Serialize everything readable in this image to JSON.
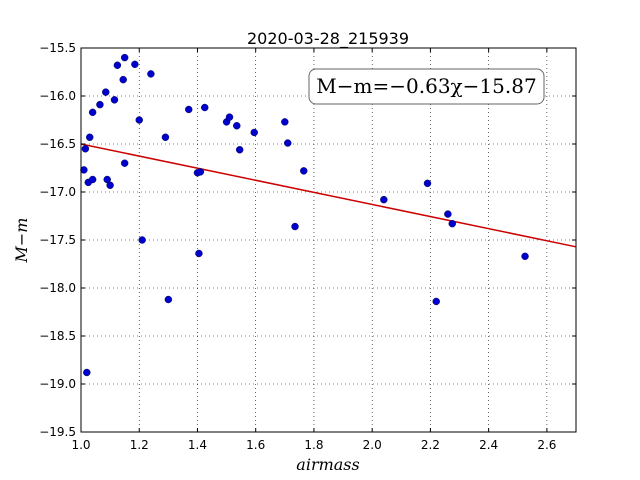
{
  "chart_data": {
    "type": "scatter",
    "title": "2020-03-28_215939",
    "xlabel": "airmass",
    "ylabel": "M−m",
    "xlim": [
      1.0,
      2.7
    ],
    "ylim": [
      -19.5,
      -15.5
    ],
    "x_ticks": [
      "1.0",
      "1.2",
      "1.4",
      "1.6",
      "1.8",
      "2.0",
      "2.2",
      "2.4",
      "2.6"
    ],
    "y_ticks": [
      "−15.5",
      "−16.0",
      "−16.5",
      "−17.0",
      "−17.5",
      "−18.0",
      "−18.5",
      "−19.0",
      "−19.5"
    ],
    "grid": true,
    "annotation": "M−m=−0.63χ−15.87",
    "fit": {
      "slope": -0.63,
      "intercept": -15.87,
      "color": "#cc0000"
    },
    "point_color": "#0000cc",
    "points": [
      [
        1.01,
        -16.77
      ],
      [
        1.015,
        -16.55
      ],
      [
        1.02,
        -18.88
      ],
      [
        1.025,
        -16.9
      ],
      [
        1.03,
        -16.43
      ],
      [
        1.04,
        -16.87
      ],
      [
        1.04,
        -16.17
      ],
      [
        1.065,
        -16.09
      ],
      [
        1.085,
        -15.96
      ],
      [
        1.09,
        -16.87
      ],
      [
        1.1,
        -16.93
      ],
      [
        1.115,
        -16.04
      ],
      [
        1.125,
        -15.68
      ],
      [
        1.145,
        -15.83
      ],
      [
        1.15,
        -15.6
      ],
      [
        1.15,
        -16.7
      ],
      [
        1.185,
        -15.67
      ],
      [
        1.2,
        -16.25
      ],
      [
        1.21,
        -17.5
      ],
      [
        1.24,
        -15.77
      ],
      [
        1.29,
        -16.43
      ],
      [
        1.3,
        -18.12
      ],
      [
        1.37,
        -16.14
      ],
      [
        1.4,
        -16.8
      ],
      [
        1.405,
        -17.64
      ],
      [
        1.41,
        -16.79
      ],
      [
        1.425,
        -16.12
      ],
      [
        1.5,
        -16.27
      ],
      [
        1.51,
        -16.22
      ],
      [
        1.535,
        -16.31
      ],
      [
        1.545,
        -16.56
      ],
      [
        1.595,
        -16.38
      ],
      [
        1.7,
        -16.27
      ],
      [
        1.71,
        -16.49
      ],
      [
        1.735,
        -17.36
      ],
      [
        1.765,
        -16.78
      ],
      [
        2.04,
        -17.08
      ],
      [
        2.19,
        -16.91
      ],
      [
        2.22,
        -18.14
      ],
      [
        2.26,
        -17.23
      ],
      [
        2.275,
        -17.33
      ],
      [
        2.525,
        -17.67
      ]
    ]
  }
}
